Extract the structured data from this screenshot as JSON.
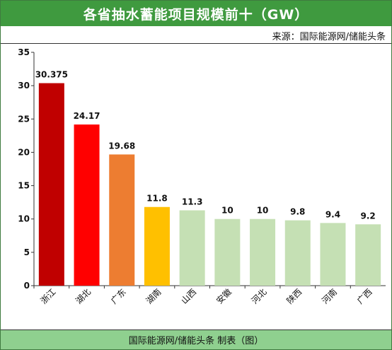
{
  "header": {
    "title": "各省抽水蓄能项目规模前十（GW）"
  },
  "source": {
    "text": "来源：国际能源网/储能头条"
  },
  "footer": {
    "text": "国际能源网/储能头条  制表（图）"
  },
  "chart_data": {
    "type": "bar",
    "title": "各省抽水蓄能项目规模前十（GW）",
    "xlabel": "",
    "ylabel": "",
    "ylim": [
      0,
      35
    ],
    "yticks": [
      0,
      5,
      10,
      15,
      20,
      25,
      30,
      35
    ],
    "grid": false,
    "legend": "none",
    "categories": [
      "浙江",
      "湖北",
      "广东",
      "湖南",
      "山西",
      "安徽",
      "河北",
      "陕西",
      "河南",
      "广西"
    ],
    "values": [
      30.375,
      24.17,
      19.68,
      11.8,
      11.3,
      10,
      10,
      9.8,
      9.4,
      9.2
    ],
    "value_labels": [
      "30.375",
      "24.17",
      "19.68",
      "11.8",
      "11.3",
      "10",
      "10",
      "9.8",
      "9.4",
      "9.2"
    ],
    "colors": [
      "#c00000",
      "#ff0000",
      "#ed7d31",
      "#ffc000",
      "#c5e0b4",
      "#c5e0b4",
      "#c5e0b4",
      "#c5e0b4",
      "#c5e0b4",
      "#c5e0b4"
    ]
  }
}
